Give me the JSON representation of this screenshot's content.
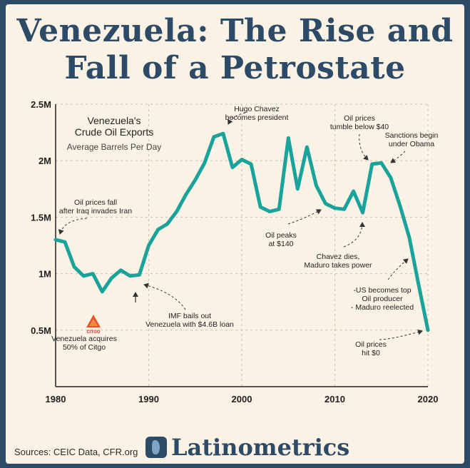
{
  "header": {
    "title_line1": "Venezuela: The Rise and",
    "title_line2": "Fall of a Petrostate"
  },
  "chart_data": {
    "type": "line",
    "title": "Venezuela's\nCrude Oil Exports",
    "subtitle": "Average Barrels Per Day",
    "xlabel": "",
    "ylabel": "",
    "xlim": [
      1980,
      2020
    ],
    "ylim": [
      0,
      2500000
    ],
    "x_ticks": [
      1980,
      1990,
      2000,
      2010,
      2020
    ],
    "y_ticks": [
      {
        "value": 500000,
        "label": "0.5M"
      },
      {
        "value": 1000000,
        "label": "1M"
      },
      {
        "value": 1500000,
        "label": "1.5M"
      },
      {
        "value": 2000000,
        "label": "2M"
      },
      {
        "value": 2500000,
        "label": "2.5M"
      }
    ],
    "grid": "dashed",
    "line_color": "#1aa39a",
    "series": [
      {
        "name": "",
        "x": [
          1980,
          1981,
          1982,
          1983,
          1984,
          1985,
          1986,
          1987,
          1988,
          1989,
          1990,
          1991,
          1992,
          1993,
          1994,
          1995,
          1996,
          1997,
          1998,
          1999,
          2000,
          2001,
          2002,
          2003,
          2004,
          2005,
          2006,
          2007,
          2008,
          2009,
          2010,
          2011,
          2012,
          2013,
          2014,
          2015,
          2016,
          2017,
          2018,
          2019,
          2020
        ],
        "values": [
          1300000,
          1280000,
          1060000,
          980000,
          1000000,
          840000,
          960000,
          1030000,
          980000,
          990000,
          1250000,
          1390000,
          1440000,
          1550000,
          1700000,
          1830000,
          1980000,
          2210000,
          2240000,
          1940000,
          2010000,
          1970000,
          1590000,
          1550000,
          1570000,
          2200000,
          1750000,
          2120000,
          1780000,
          1620000,
          1580000,
          1570000,
          1730000,
          1540000,
          1970000,
          1980000,
          1850000,
          1600000,
          1320000,
          900000,
          500000
        ]
      }
    ],
    "annotations": [
      {
        "text": "Oil prices fall\nafter Iraq invades Iran",
        "x": 1980
      },
      {
        "text": "Venezuela acquires\n50% of Citgo",
        "x": 1986
      },
      {
        "text": "IMF bails out\nVenezuela with $4.6B loan",
        "x": 1989
      },
      {
        "text": "Hugo Chavez\nbecomes president",
        "x": 1998
      },
      {
        "text": "Oil peaks\nat $140",
        "x": 2008
      },
      {
        "text": "Oil prices\ntumble below $40",
        "x": 2014
      },
      {
        "text": "Sanctions begin\nunder Obama",
        "x": 2015
      },
      {
        "text": "Chavez dies,\nMaduro takes power",
        "x": 2013
      },
      {
        "text": "-US becomes top\nOil producer\n- Maduro reelected",
        "x": 2018
      },
      {
        "text": "Oil prices\nhit $0",
        "x": 2020
      }
    ],
    "logo_label": "CITGO"
  },
  "footer": {
    "sources": "Sources: CEIC Data, CFR.org",
    "brand": "Latinometrics"
  }
}
